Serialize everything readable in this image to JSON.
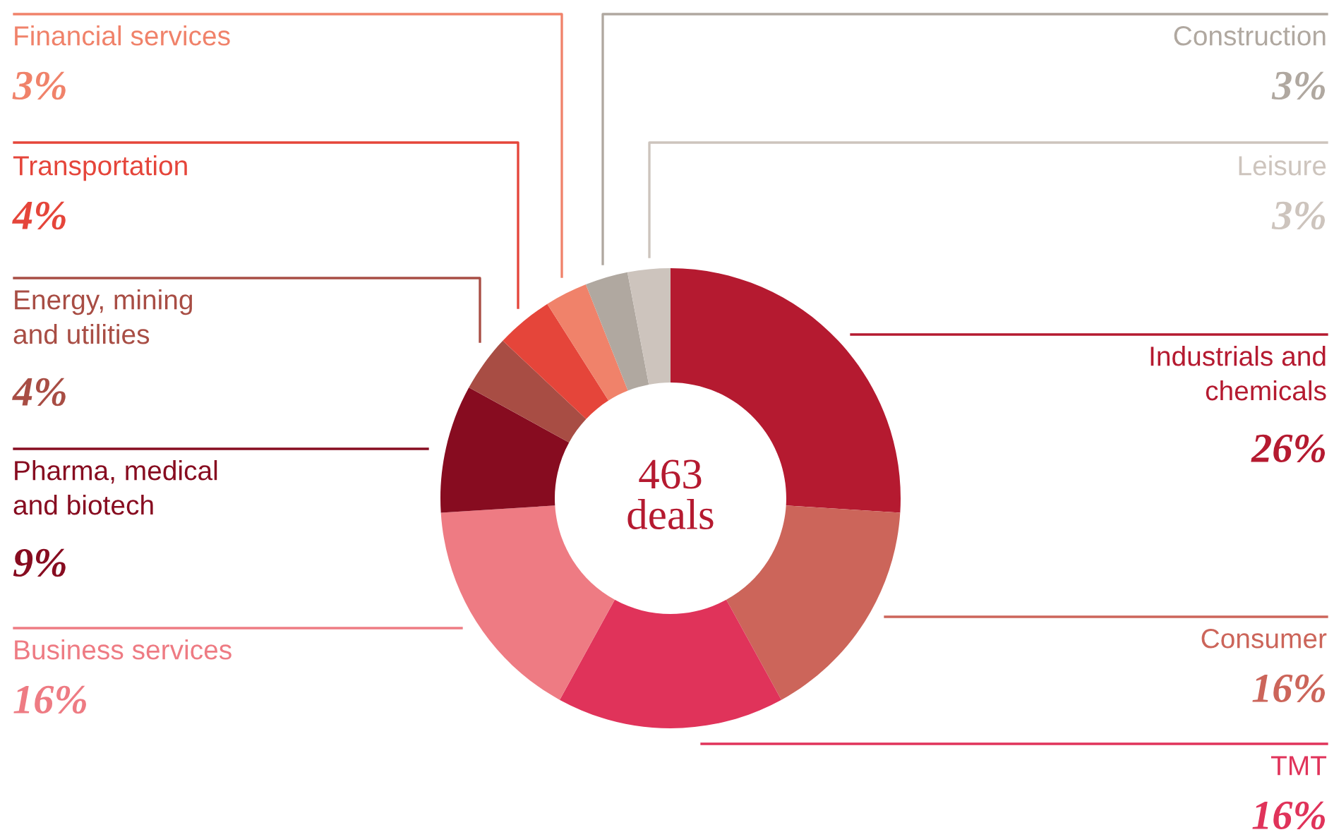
{
  "chart_data": {
    "type": "donut",
    "categories": [
      "Industrials and\nchemicals",
      "Consumer",
      "TMT",
      "Business services",
      "Pharma, medical\nand biotech",
      "Energy, mining\nand utilities",
      "Transportation",
      "Financial services",
      "Construction",
      "Leisure"
    ],
    "values": [
      26,
      16,
      16,
      16,
      9,
      4,
      4,
      3,
      3,
      3
    ],
    "colors": [
      "#b51a30",
      "#cc655a",
      "#e0335a",
      "#ee7b83",
      "#870c20",
      "#a84d44",
      "#e5453a",
      "#f0826a",
      "#b0a8a0",
      "#cdc4bd"
    ],
    "value_labels": [
      "26%",
      "16%",
      "16%",
      "16%",
      "9%",
      "4%",
      "4%",
      "3%",
      "3%",
      "3%"
    ],
    "annotations": [
      "463\ndeals"
    ],
    "legend": false
  }
}
